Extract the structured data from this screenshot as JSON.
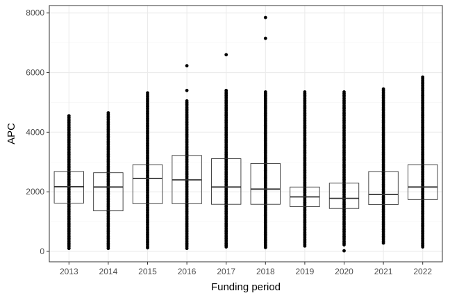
{
  "chart_data": {
    "type": "box",
    "xlabel": "Funding period",
    "ylabel": "APC",
    "ylim": [
      -350,
      8250
    ],
    "yticks": [
      0,
      2000,
      4000,
      6000,
      8000
    ],
    "grid": true,
    "legend": "none",
    "categories": [
      "2013",
      "2014",
      "2015",
      "2016",
      "2017",
      "2018",
      "2019",
      "2020",
      "2021",
      "2022"
    ],
    "boxes": [
      {
        "category": "2013",
        "q1": 1620,
        "median": 2170,
        "q3": 2680,
        "strip_min": 100,
        "strip_max": 4550,
        "outliers": []
      },
      {
        "category": "2014",
        "q1": 1360,
        "median": 2160,
        "q3": 2640,
        "strip_min": 100,
        "strip_max": 4650,
        "outliers": []
      },
      {
        "category": "2015",
        "q1": 1600,
        "median": 2450,
        "q3": 2910,
        "strip_min": 120,
        "strip_max": 5250,
        "outliers": [
          5320
        ]
      },
      {
        "category": "2016",
        "q1": 1600,
        "median": 2400,
        "q3": 3220,
        "strip_min": 100,
        "strip_max": 5050,
        "outliers": [
          5400,
          6230
        ]
      },
      {
        "category": "2017",
        "q1": 1580,
        "median": 2160,
        "q3": 3110,
        "strip_min": 150,
        "strip_max": 5400,
        "outliers": [
          6600
        ]
      },
      {
        "category": "2018",
        "q1": 1580,
        "median": 2090,
        "q3": 2950,
        "strip_min": 130,
        "strip_max": 5350,
        "outliers": [
          7150,
          7850
        ]
      },
      {
        "category": "2019",
        "q1": 1500,
        "median": 1830,
        "q3": 2160,
        "strip_min": 180,
        "strip_max": 5350,
        "outliers": []
      },
      {
        "category": "2020",
        "q1": 1440,
        "median": 1780,
        "q3": 2290,
        "strip_min": 220,
        "strip_max": 5350,
        "outliers": [
          20
        ]
      },
      {
        "category": "2021",
        "q1": 1570,
        "median": 1910,
        "q3": 2680,
        "strip_min": 280,
        "strip_max": 5450,
        "outliers": []
      },
      {
        "category": "2022",
        "q1": 1740,
        "median": 2160,
        "q3": 2910,
        "strip_min": 150,
        "strip_max": 5850,
        "outliers": []
      }
    ],
    "colors": {
      "panel_border": "#333333",
      "grid_major": "#ebebeb",
      "grid_minor": "#f4f4f4",
      "box_line": "#333333",
      "points": "#000000"
    }
  }
}
